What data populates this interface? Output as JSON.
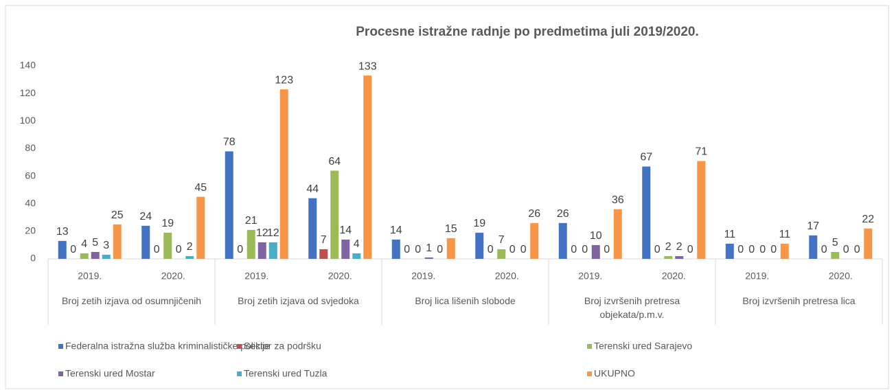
{
  "chart_data": {
    "type": "bar",
    "title": "Procesne istražne radnje po predmetima juli 2019/2020.",
    "groups": [
      "Broj zetih izjava od osumnjičenih",
      "Broj zetih izjava od svjedoka",
      "Broj lica lišenih slobode",
      "Broj izvršenih pretresa objekata/p.m.v.",
      "Broj izvršenih pretresa lica"
    ],
    "categories": [
      "2019.",
      "2020.",
      "2019.",
      "2020.",
      "2019.",
      "2020.",
      "2019.",
      "2020.",
      "2019.",
      "2020."
    ],
    "series": [
      {
        "name": "Federalna istražna služba kriminalističke policije",
        "color": "#4472c4",
        "values": [
          13,
          24,
          78,
          44,
          14,
          19,
          26,
          67,
          11,
          17
        ]
      },
      {
        "name": "Sektor za podršku",
        "color": "#c0504d",
        "values": [
          0,
          0,
          0,
          7,
          0,
          0,
          0,
          0,
          0,
          0
        ]
      },
      {
        "name": "Terenski ured Sarajevo",
        "color": "#9bbb59",
        "values": [
          4,
          19,
          21,
          64,
          0,
          7,
          0,
          2,
          0,
          5
        ]
      },
      {
        "name": "Terenski ured Mostar",
        "color": "#8064a2",
        "values": [
          5,
          0,
          12,
          14,
          1,
          0,
          10,
          2,
          0,
          0
        ]
      },
      {
        "name": "Terenski ured Tuzla",
        "color": "#4bacc6",
        "values": [
          3,
          2,
          12,
          4,
          0,
          0,
          0,
          0,
          0,
          0
        ]
      },
      {
        "name": "UKUPNO",
        "color": "#f79646",
        "values": [
          25,
          45,
          123,
          133,
          15,
          26,
          36,
          71,
          11,
          22
        ]
      }
    ],
    "ylim": [
      0,
      140
    ],
    "yticks": [
      0,
      20,
      40,
      60,
      80,
      100,
      120,
      140
    ],
    "grid": false,
    "legend": "bottom"
  }
}
